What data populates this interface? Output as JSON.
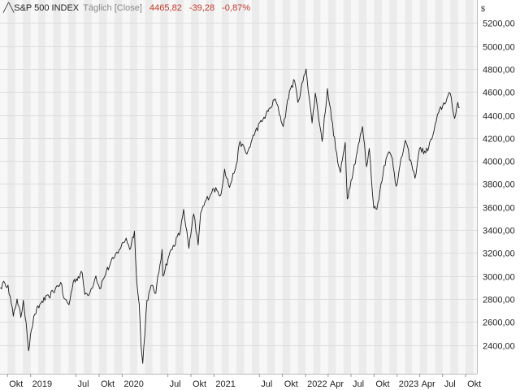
{
  "header": {
    "symbol": "S&P 500 INDEX",
    "mode": "Täglich [Close]",
    "last": "4465,82",
    "change": "-39,28",
    "change_pct": "-0,87%"
  },
  "currency": "$",
  "colors": {
    "line": "#1a1a1a",
    "band_dark": "#ebebeb",
    "band_light": "#f7f7f7",
    "grid": "#dddddd",
    "negative": "#c0392b"
  },
  "chart_data": {
    "type": "line",
    "ylim": [
      2150,
      5400
    ],
    "yticks": [
      2400,
      2600,
      2800,
      3000,
      3200,
      3400,
      3600,
      3800,
      4000,
      4200,
      4400,
      4600,
      4800,
      5000,
      5200
    ],
    "ytick_labels": [
      "2400,00",
      "2600,00",
      "2800,00",
      "3000,00",
      "3200,00",
      "3400,00",
      "3600,00",
      "3800,00",
      "4000,00",
      "4200,00",
      "4400,00",
      "4600,00",
      "4800,00",
      "5000,00",
      "5200,00"
    ],
    "xlim": [
      "2018-09-01",
      "2023-11-15"
    ],
    "xticks": [
      {
        "date": "2018-10-01",
        "label": "Okt"
      },
      {
        "date": "2019-01-01",
        "label": "2019"
      },
      {
        "date": "2019-07-01",
        "label": "Jul"
      },
      {
        "date": "2019-10-01",
        "label": "Okt"
      },
      {
        "date": "2020-01-01",
        "label": "2020"
      },
      {
        "date": "2020-07-01",
        "label": "Jul"
      },
      {
        "date": "2020-10-01",
        "label": "Okt"
      },
      {
        "date": "2021-01-01",
        "label": "2021"
      },
      {
        "date": "2021-07-01",
        "label": "Jul"
      },
      {
        "date": "2021-10-01",
        "label": "Okt"
      },
      {
        "date": "2022-01-01",
        "label": "2022"
      },
      {
        "date": "2022-04-01",
        "label": "Apr"
      },
      {
        "date": "2022-07-01",
        "label": "Jul"
      },
      {
        "date": "2022-10-01",
        "label": "Okt"
      },
      {
        "date": "2023-01-01",
        "label": "2023"
      },
      {
        "date": "2023-04-01",
        "label": "Apr"
      },
      {
        "date": "2023-07-01",
        "label": "Jul"
      },
      {
        "date": "2023-10-01",
        "label": "Okt"
      }
    ],
    "grid": true,
    "series": [
      {
        "x": [
          "2018-09-03",
          "2018-09-20",
          "2018-10-03",
          "2018-10-24",
          "2018-11-08",
          "2018-11-23",
          "2018-12-03",
          "2018-12-14",
          "2018-12-24",
          "2019-01-04",
          "2019-01-18",
          "2019-02-15",
          "2019-03-15",
          "2019-04-10",
          "2019-05-01",
          "2019-05-13",
          "2019-06-03",
          "2019-06-20",
          "2019-07-26",
          "2019-08-05",
          "2019-08-26",
          "2019-09-18",
          "2019-10-03",
          "2019-10-30",
          "2019-11-27",
          "2019-12-20",
          "2020-01-17",
          "2020-01-31",
          "2020-02-19",
          "2020-02-28",
          "2020-03-09",
          "2020-03-16",
          "2020-03-23",
          "2020-04-09",
          "2020-04-29",
          "2020-05-14",
          "2020-06-08",
          "2020-06-11",
          "2020-07-06",
          "2020-08-20",
          "2020-09-02",
          "2020-09-23",
          "2020-10-12",
          "2020-10-30",
          "2020-11-09",
          "2020-12-01",
          "2020-12-31",
          "2021-01-29",
          "2021-02-12",
          "2021-03-04",
          "2021-03-31",
          "2021-04-15",
          "2021-05-12",
          "2021-06-15",
          "2021-07-15",
          "2021-08-13",
          "2021-09-02",
          "2021-10-04",
          "2021-10-29",
          "2021-11-18",
          "2021-12-01",
          "2022-01-03",
          "2022-01-27",
          "2022-02-09",
          "2022-03-08",
          "2022-03-29",
          "2022-05-09",
          "2022-05-20",
          "2022-06-08",
          "2022-06-16",
          "2022-07-01",
          "2022-08-16",
          "2022-09-01",
          "2022-09-12",
          "2022-09-30",
          "2022-10-12",
          "2022-11-10",
          "2022-11-30",
          "2022-12-13",
          "2022-12-28",
          "2023-02-02",
          "2023-03-13",
          "2023-03-31",
          "2023-04-25",
          "2023-05-19",
          "2023-06-15",
          "2023-07-31",
          "2023-08-09",
          "2023-08-18",
          "2023-08-31",
          "2023-09-07"
        ],
        "values": [
          2900,
          2940,
          2920,
          2650,
          2800,
          2640,
          2790,
          2600,
          2350,
          2530,
          2670,
          2780,
          2820,
          2890,
          2945,
          2810,
          2750,
          2950,
          3025,
          2840,
          2860,
          3000,
          2890,
          3040,
          3150,
          3230,
          3330,
          3230,
          3390,
          2950,
          2750,
          2400,
          2240,
          2790,
          2920,
          2850,
          3230,
          3000,
          3180,
          3390,
          3580,
          3240,
          3540,
          3270,
          3550,
          3660,
          3760,
          3710,
          3930,
          3770,
          3970,
          4170,
          4060,
          4260,
          4360,
          4460,
          4540,
          4300,
          4610,
          4700,
          4510,
          4800,
          4330,
          4590,
          4170,
          4630,
          3990,
          3900,
          4160,
          3670,
          3830,
          4300,
          3950,
          4110,
          3590,
          3580,
          3960,
          4080,
          4020,
          3780,
          4180,
          3850,
          4110,
          4070,
          4190,
          4420,
          4590,
          4470,
          4370,
          4510,
          4465
        ]
      }
    ]
  }
}
